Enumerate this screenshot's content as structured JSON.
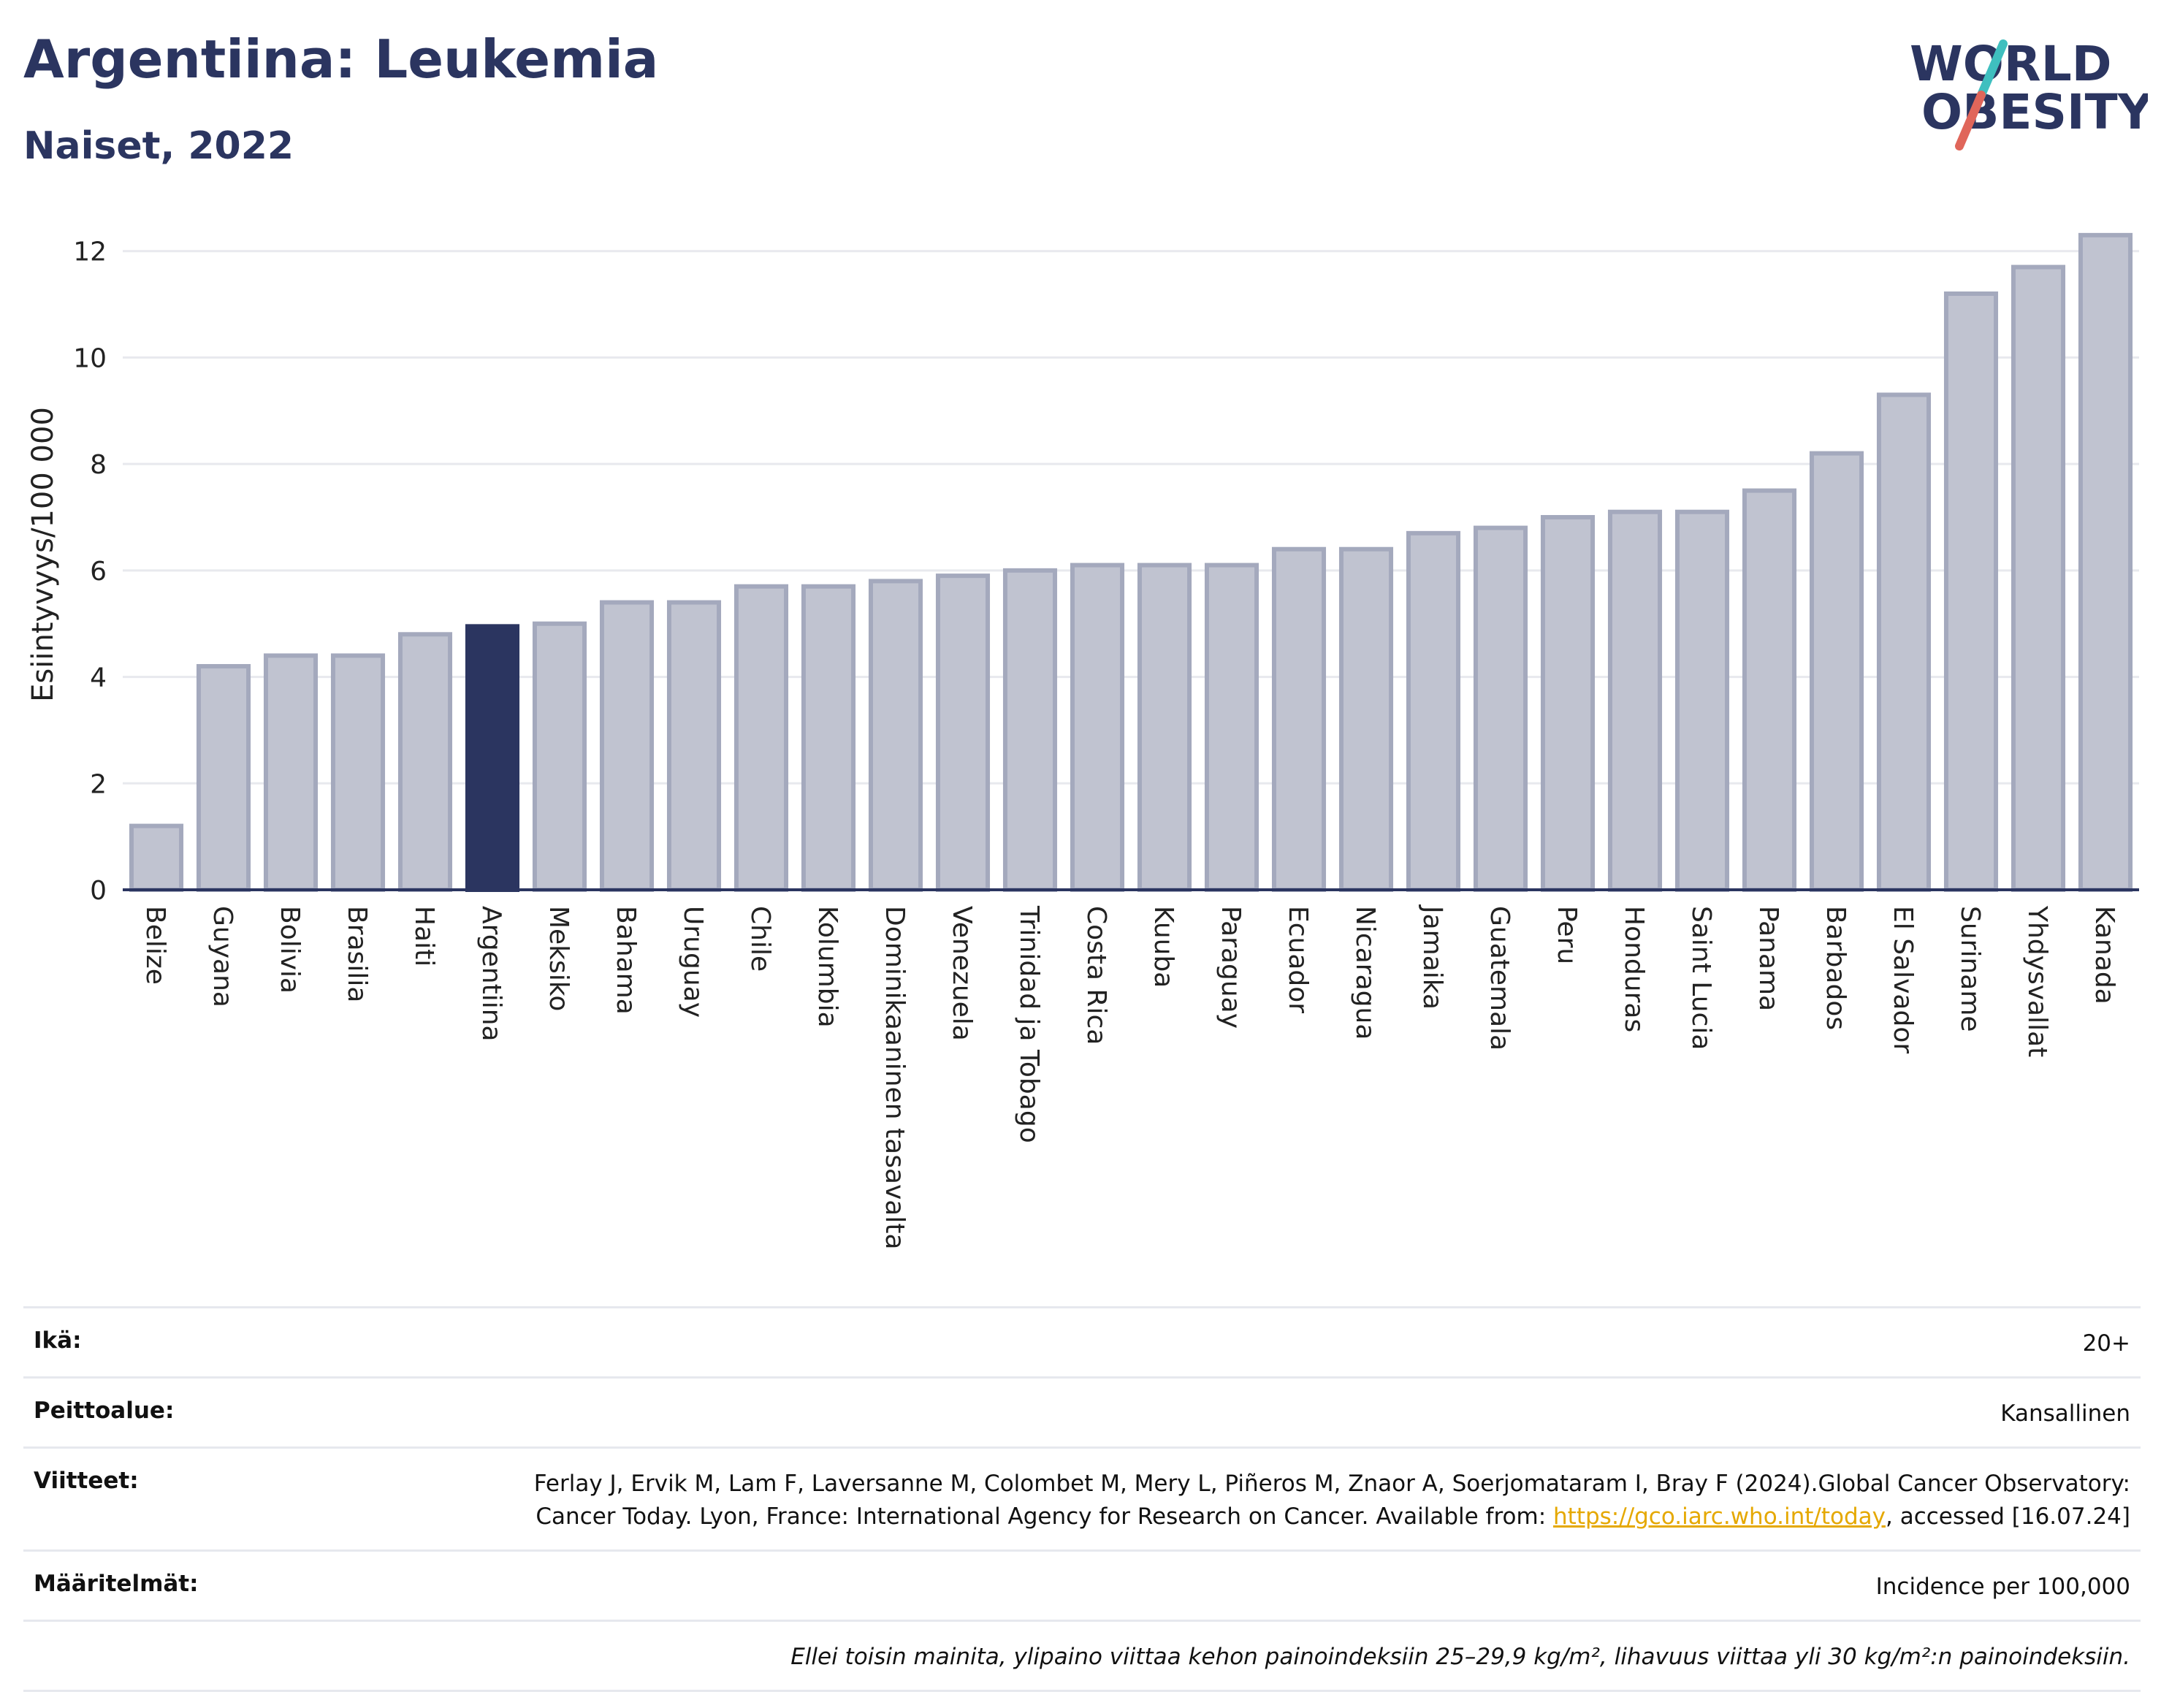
{
  "header": {
    "title": "Argentiina: Leukemia",
    "subtitle": "Naiset, 2022"
  },
  "logo": {
    "line1": "WORLD",
    "line2": "OBESITY",
    "colors": {
      "text": "#2b3560",
      "slash_teal": "#3fbfbf",
      "slash_red": "#e0665a"
    }
  },
  "colors": {
    "bar_default": "#c0c3d0",
    "bar_default_border": "#a4a9bd",
    "bar_highlight": "#2b3560",
    "grid": "#e8e9ee",
    "axis": "#2b3560"
  },
  "chart_data": {
    "type": "bar",
    "title": "Argentiina: Leukemia",
    "subtitle": "Naiset, 2022",
    "ylabel": "Esiintyvyys/100 000",
    "xlabel": "",
    "ylim": [
      0,
      12.6
    ],
    "yticks": [
      0,
      2,
      4,
      6,
      8,
      10,
      12
    ],
    "grid": true,
    "highlight": "Argentiina",
    "categories": [
      "Belize",
      "Guyana",
      "Bolivia",
      "Brasilia",
      "Haiti",
      "Argentiina",
      "Meksiko",
      "Bahama",
      "Uruguay",
      "Chile",
      "Kolumbia",
      "Dominikaaninen tasavalta",
      "Venezuela",
      "Trinidad ja Tobago",
      "Costa Rica",
      "Kuuba",
      "Paraguay",
      "Ecuador",
      "Nicaragua",
      "Jamaika",
      "Guatemala",
      "Peru",
      "Honduras",
      "Saint Lucia",
      "Panama",
      "Barbados",
      "El Salvador",
      "Suriname",
      "Yhdysvallat",
      "Kanada"
    ],
    "values": [
      1.2,
      4.2,
      4.4,
      4.4,
      4.8,
      4.95,
      5.0,
      5.4,
      5.4,
      5.7,
      5.7,
      5.8,
      5.9,
      6.0,
      6.1,
      6.1,
      6.1,
      6.4,
      6.4,
      6.7,
      6.8,
      7.0,
      7.1,
      7.1,
      7.5,
      8.2,
      9.3,
      11.2,
      11.7,
      12.3
    ]
  },
  "meta": {
    "age_label": "Ikä:",
    "age_value": "20+",
    "coverage_label": "Peittoalue:",
    "coverage_value": "Kansallinen",
    "references_label": "Viitteet:",
    "references_text": "Ferlay J, Ervik M, Lam F, Laversanne M, Colombet M, Mery L, Piñeros M, Znaor A, Soerjomataram I, Bray F (2024).Global Cancer Observatory: Cancer Today. Lyon, France: International Agency for Research on Cancer. Available from:",
    "references_link": "https://gco.iarc.who.int/today",
    "references_suffix": ", accessed [16.07.24]",
    "definitions_label": "Määritelmät:",
    "definitions_value": "Incidence per 100,000",
    "note": "Ellei toisin mainita, ylipaino viittaa kehon painoindeksiin 25–29,9 kg/m², lihavuus viittaa yli 30 kg/m²:n painoindeksiin."
  }
}
